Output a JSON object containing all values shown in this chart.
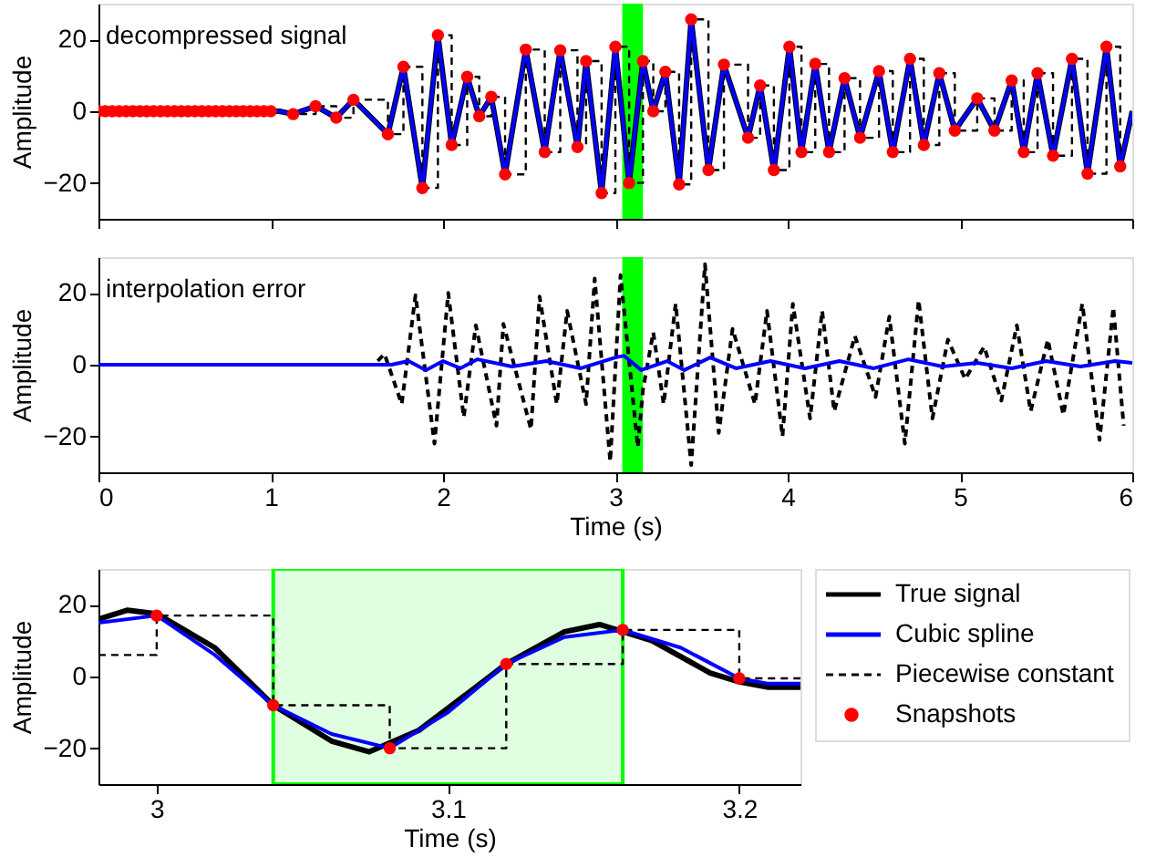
{
  "chart_data": [
    {
      "type": "line",
      "ylabel": "Amplitude",
      "annotations": [
        "decompressed signal"
      ],
      "xlim": [
        0,
        6
      ],
      "ylim": [
        -30,
        30
      ],
      "xticks": [
        0,
        1,
        2,
        3,
        4,
        5,
        6
      ],
      "yticks": [
        -20,
        0,
        20
      ],
      "tick_labels": "y",
      "grid": false,
      "bands": [
        {
          "axis": "x",
          "from": 3.04,
          "to": 3.16,
          "color": "#00ff00"
        }
      ],
      "series": [
        {
          "color": "#000000",
          "x": [
            0,
            1.05,
            1.13,
            1.26,
            1.38,
            1.48,
            1.68,
            1.77,
            1.88,
            1.97,
            2.05,
            2.14,
            2.21,
            2.28,
            2.36,
            2.48,
            2.59,
            2.68,
            2.78,
            2.83,
            2.92,
            3.0,
            3.08,
            3.16,
            3.22,
            3.29,
            3.37,
            3.44,
            3.54,
            3.63,
            3.77,
            3.84,
            3.92,
            4.01,
            4.08,
            4.16,
            4.24,
            4.33,
            4.42,
            4.53,
            4.61,
            4.71,
            4.79,
            4.88,
            4.97,
            5.1,
            5.2,
            5.3,
            5.37,
            5.45,
            5.54,
            5.65,
            5.74,
            5.85,
            5.93,
            6.0
          ],
          "values": [
            0,
            0,
            -0.8,
            1.4,
            -1.8,
            3.2,
            -6.4,
            12.4,
            -21.4,
            21.2,
            -9.4,
            9.6,
            -1.4,
            4,
            -17.6,
            17.2,
            -11.4,
            17,
            -10,
            14,
            -22.8,
            18,
            -20,
            14,
            0,
            11,
            -20.4,
            25.6,
            -16.4,
            13,
            -7.4,
            7.2,
            -16.4,
            18,
            -11.4,
            13.2,
            -11.4,
            9.2,
            -7.4,
            11.2,
            -11.4,
            14.6,
            -9.4,
            10.6,
            -5.4,
            3.6,
            -5.4,
            8.6,
            -11.4,
            10.6,
            -12.4,
            14.6,
            -17.4,
            18,
            -15.4,
            0
          ]
        },
        {
          "type": "step",
          "color": "#000000",
          "line_style": "dashed",
          "x": [
            0,
            0.04,
            0.08,
            0.12,
            0.16,
            0.2,
            0.24,
            0.28,
            0.32,
            0.36,
            0.4,
            0.44,
            0.48,
            0.52,
            0.56,
            0.6,
            0.64,
            0.68,
            0.72,
            0.76,
            0.8,
            0.84,
            0.88,
            0.92,
            0.96,
            1.0,
            1.13,
            1.26,
            1.38,
            1.48,
            1.68,
            1.77,
            1.88,
            1.97,
            2.05,
            2.14,
            2.21,
            2.28,
            2.36,
            2.48,
            2.59,
            2.68,
            2.78,
            2.83,
            2.92,
            3.0,
            3.08,
            3.16,
            3.22,
            3.29,
            3.37,
            3.44,
            3.54,
            3.63,
            3.77,
            3.84,
            3.92,
            4.01,
            4.08,
            4.16,
            4.24,
            4.33,
            4.42,
            4.53,
            4.61,
            4.71,
            4.79,
            4.88,
            4.97,
            5.1,
            5.2,
            5.3,
            5.37,
            5.45,
            5.54,
            5.65,
            5.74,
            5.85,
            5.93
          ],
          "values": [
            0,
            0,
            0,
            0,
            0,
            0,
            0,
            0,
            0,
            0,
            0,
            0,
            0,
            0,
            0,
            0,
            0,
            0,
            0,
            0,
            0,
            0,
            0,
            0,
            0,
            0,
            -0.8,
            1.4,
            -1.8,
            3.2,
            -6.4,
            12.4,
            -21.4,
            21.2,
            -9.4,
            9.6,
            -1.4,
            4,
            -17.6,
            17.2,
            -11.4,
            17,
            -10,
            14,
            -22.8,
            18,
            -20,
            14,
            0,
            11,
            -20.4,
            25.6,
            -16.4,
            13,
            -7.4,
            7.2,
            -16.4,
            18,
            -11.4,
            13.2,
            -11.4,
            9.2,
            -7.4,
            11.2,
            -11.4,
            14.6,
            -9.4,
            10.6,
            -5.4,
            3.6,
            -5.4,
            8.6,
            -11.4,
            10.6,
            -12.4,
            14.6,
            -17.4,
            18,
            -15.4
          ]
        },
        {
          "color": "#0000ff",
          "x": [
            0,
            1.05,
            1.13,
            1.26,
            1.38,
            1.48,
            1.68,
            1.77,
            1.88,
            1.97,
            2.05,
            2.14,
            2.21,
            2.28,
            2.36,
            2.48,
            2.59,
            2.68,
            2.78,
            2.83,
            2.92,
            3.0,
            3.08,
            3.16,
            3.22,
            3.29,
            3.37,
            3.44,
            3.54,
            3.63,
            3.77,
            3.84,
            3.92,
            4.01,
            4.08,
            4.16,
            4.24,
            4.33,
            4.42,
            4.53,
            4.61,
            4.71,
            4.79,
            4.88,
            4.97,
            5.1,
            5.2,
            5.3,
            5.37,
            5.45,
            5.54,
            5.65,
            5.74,
            5.85,
            5.93,
            6.0
          ],
          "values": [
            0,
            0,
            -0.8,
            1.4,
            -1.8,
            3.2,
            -6.4,
            12.4,
            -21.4,
            21.2,
            -9.4,
            9.6,
            -1.4,
            4,
            -17.6,
            17.2,
            -11.4,
            17,
            -10,
            14,
            -22.8,
            18,
            -20,
            14,
            0,
            11,
            -20.4,
            25.6,
            -16.4,
            13,
            -7.4,
            7.2,
            -16.4,
            18,
            -11.4,
            13.2,
            -11.4,
            9.2,
            -7.4,
            11.2,
            -11.4,
            14.6,
            -9.4,
            10.6,
            -5.4,
            3.6,
            -5.4,
            8.6,
            -11.4,
            10.6,
            -12.4,
            14.6,
            -17.4,
            18,
            -15.4,
            0
          ]
        },
        {
          "type": "scatter",
          "color": "#ff0000",
          "marker": "circle",
          "x": [
            0,
            0.04,
            0.08,
            0.12,
            0.16,
            0.2,
            0.24,
            0.28,
            0.32,
            0.36,
            0.4,
            0.44,
            0.48,
            0.52,
            0.56,
            0.6,
            0.64,
            0.68,
            0.72,
            0.76,
            0.8,
            0.84,
            0.88,
            0.92,
            0.96,
            1.0,
            1.13,
            1.26,
            1.38,
            1.48,
            1.68,
            1.77,
            1.88,
            1.97,
            2.05,
            2.14,
            2.21,
            2.28,
            2.36,
            2.48,
            2.59,
            2.68,
            2.78,
            2.83,
            2.92,
            3.0,
            3.08,
            3.16,
            3.22,
            3.29,
            3.37,
            3.44,
            3.54,
            3.63,
            3.77,
            3.84,
            3.92,
            4.01,
            4.08,
            4.16,
            4.24,
            4.33,
            4.42,
            4.53,
            4.61,
            4.71,
            4.79,
            4.88,
            4.97,
            5.1,
            5.2,
            5.3,
            5.37,
            5.45,
            5.54,
            5.65,
            5.74,
            5.85,
            5.93
          ],
          "values": [
            0,
            0,
            0,
            0,
            0,
            0,
            0,
            0,
            0,
            0,
            0,
            0,
            0,
            0,
            0,
            0,
            0,
            0,
            0,
            0,
            0,
            0,
            0,
            0,
            0,
            0,
            -0.8,
            1.4,
            -1.8,
            3.2,
            -6.4,
            12.4,
            -21.4,
            21.2,
            -9.4,
            9.6,
            -1.4,
            4,
            -17.6,
            17.2,
            -11.4,
            17,
            -10,
            14,
            -22.8,
            18,
            -20,
            14,
            0,
            11,
            -20.4,
            25.6,
            -16.4,
            13,
            -7.4,
            7.2,
            -16.4,
            18,
            -11.4,
            13.2,
            -11.4,
            9.2,
            -7.4,
            11.2,
            -11.4,
            14.6,
            -9.4,
            10.6,
            -5.4,
            3.6,
            -5.4,
            8.6,
            -11.4,
            10.6,
            -12.4,
            14.6,
            -17.4,
            18,
            -15.4
          ]
        }
      ]
    },
    {
      "type": "line",
      "xlabel": "Time (s)",
      "ylabel": "Amplitude",
      "annotations": [
        "interpolation error"
      ],
      "xlim": [
        0,
        6
      ],
      "ylim": [
        -30,
        30
      ],
      "xticks": [
        0,
        1,
        2,
        3,
        4,
        5,
        6
      ],
      "yticks": [
        -20,
        0,
        20
      ],
      "grid": false,
      "bands": [
        {
          "axis": "x",
          "from": 3.04,
          "to": 3.16,
          "color": "#00ff00"
        }
      ],
      "series": [
        {
          "color": "#000000",
          "line_style": "dashed",
          "x": [
            0,
            1.6,
            1.66,
            1.76,
            1.84,
            1.95,
            2.03,
            2.12,
            2.19,
            2.31,
            2.35,
            2.51,
            2.56,
            2.66,
            2.72,
            2.83,
            2.88,
            2.97,
            3.03,
            3.13,
            3.16,
            3.22,
            3.28,
            3.35,
            3.44,
            3.52,
            3.6,
            3.68,
            3.81,
            3.88,
            3.97,
            4.03,
            4.13,
            4.2,
            4.27,
            4.39,
            4.51,
            4.59,
            4.68,
            4.76,
            4.84,
            4.93,
            5.03,
            5.14,
            5.24,
            5.33,
            5.41,
            5.51,
            5.6,
            5.71,
            5.81,
            5.89,
            5.95
          ],
          "values": [
            0,
            0,
            3,
            -11,
            19.4,
            -22,
            20,
            -14.6,
            11,
            -17,
            11.4,
            -18,
            19,
            -11,
            15,
            -11,
            24,
            -27,
            25,
            -23,
            -7,
            9,
            -11,
            17,
            -28,
            28,
            -19,
            10,
            -11,
            15,
            -20,
            17,
            -15,
            15,
            -13,
            8,
            -9,
            13.4,
            -22,
            18,
            -15,
            7,
            -4,
            5,
            -10,
            11,
            -13,
            7,
            -14,
            17,
            -21,
            16,
            -17
          ]
        },
        {
          "color": "#0000ff",
          "x": [
            0,
            1.7,
            1.8,
            1.9,
            2.0,
            2.1,
            2.2,
            2.4,
            2.6,
            2.8,
            3.0,
            3.05,
            3.15,
            3.3,
            3.4,
            3.55,
            3.7,
            3.9,
            4.1,
            4.3,
            4.5,
            4.7,
            4.9,
            5.1,
            5.3,
            5.5,
            5.7,
            5.9,
            6.0
          ],
          "values": [
            0,
            0,
            1,
            -1.5,
            1,
            -1,
            1.5,
            -0.5,
            1,
            -1,
            2,
            2.5,
            -1.5,
            1,
            -1.5,
            2,
            -1,
            1,
            -1,
            1,
            -1,
            1.5,
            -0.5,
            0.5,
            -1,
            1,
            -0.5,
            1,
            0.5
          ]
        }
      ]
    },
    {
      "type": "line",
      "xlabel": "Time (s)",
      "ylabel": "Amplitude",
      "xlim": [
        2.98,
        3.221
      ],
      "ylim": [
        -30,
        30
      ],
      "xticks": [
        3,
        3.1,
        3.2
      ],
      "yticks": [
        -20,
        0,
        20
      ],
      "grid": false,
      "legend": "right",
      "bands": [
        {
          "axis": "x",
          "from": 3.04,
          "to": 3.16,
          "color": "#00ff00"
        }
      ],
      "series": [
        {
          "name": "True signal",
          "color": "#000000",
          "x": [
            2.98,
            2.99,
            3.0,
            3.02,
            3.04,
            3.06,
            3.073,
            3.09,
            3.12,
            3.14,
            3.152,
            3.17,
            3.19,
            3.2,
            3.21,
            3.221
          ],
          "values": [
            16,
            18.5,
            17.5,
            8,
            -8,
            -18,
            -21,
            -15,
            3.5,
            12.5,
            14.5,
            10,
            1,
            -1.5,
            -3,
            -3
          ]
        },
        {
          "name": "Cubic spline",
          "color": "#0000ff",
          "x": [
            2.98,
            3.0,
            3.02,
            3.04,
            3.06,
            3.08,
            3.1,
            3.12,
            3.14,
            3.16,
            3.18,
            3.2,
            3.21,
            3.221
          ],
          "values": [
            15,
            17,
            6,
            -8,
            -16,
            -20,
            -10,
            3.5,
            11,
            13,
            8,
            -0.5,
            -2,
            -2
          ]
        },
        {
          "name": "Piecewise constant",
          "type": "step",
          "color": "#000000",
          "line_style": "dashed",
          "x": [
            2.98,
            3.0,
            3.04,
            3.08,
            3.12,
            3.16,
            3.2,
            3.221
          ],
          "values": [
            6,
            17,
            -8,
            -20,
            3.5,
            13,
            -0.5,
            -0.5
          ]
        },
        {
          "name": "Snapshots",
          "type": "scatter",
          "color": "#ff0000",
          "marker": "circle",
          "x": [
            3.0,
            3.04,
            3.08,
            3.12,
            3.16,
            3.2
          ],
          "values": [
            17,
            -8,
            -20,
            3.5,
            13,
            -0.5
          ]
        }
      ]
    }
  ]
}
